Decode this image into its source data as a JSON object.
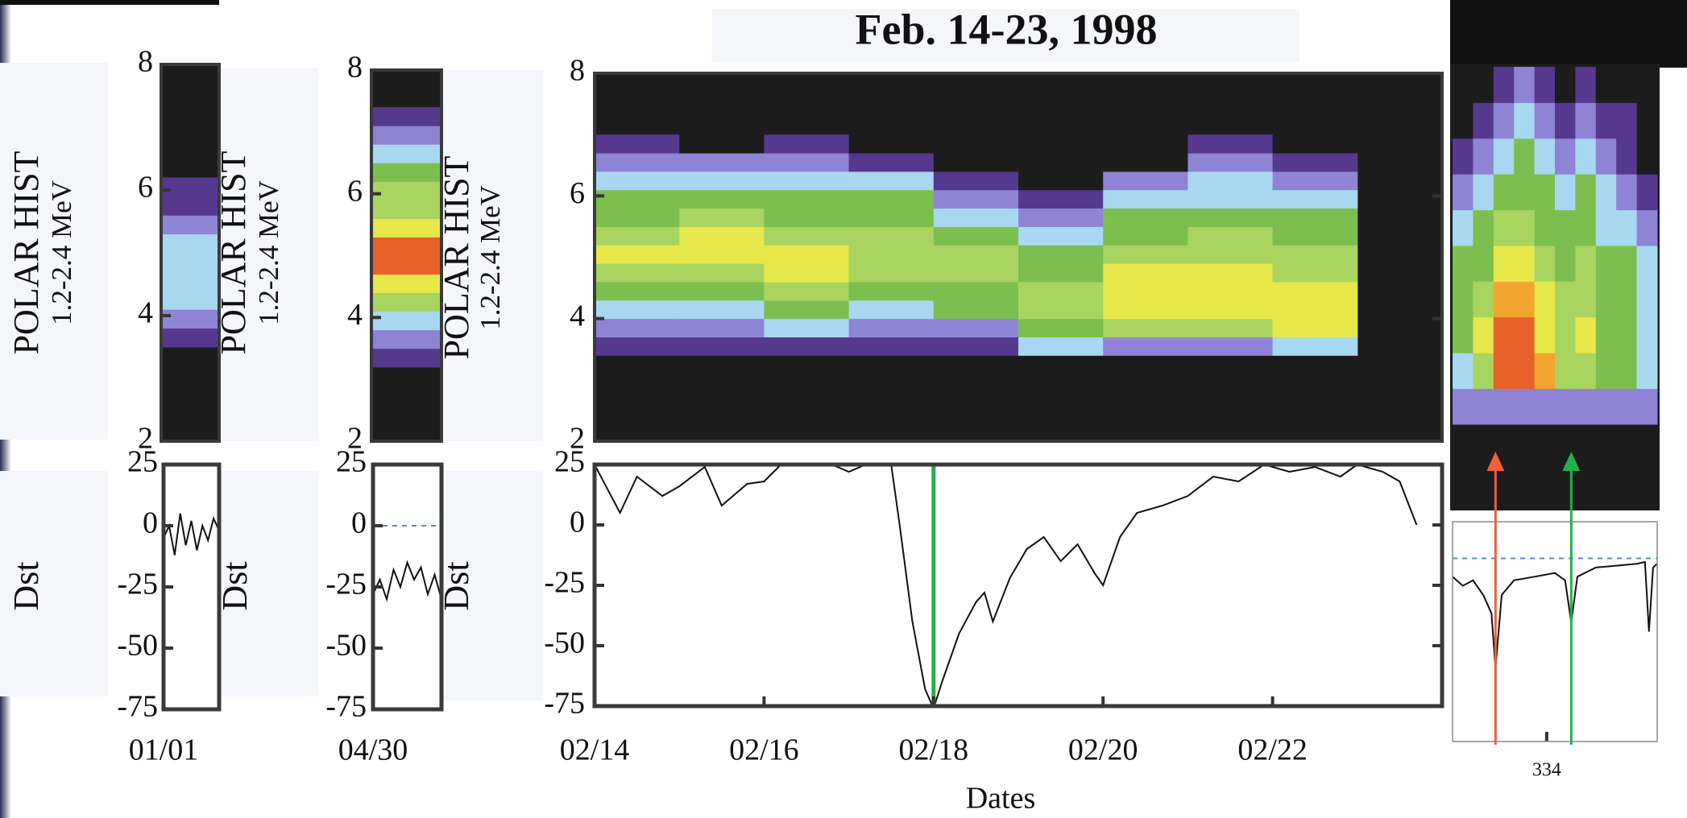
{
  "chart_data": [
    {
      "type": "heatmap",
      "title": "Feb. 14-23, 1998",
      "ylabel": "POLAR HIST",
      "ylabel_sub": "1.2-2.4 MeV",
      "xlim": [
        14,
        24
      ],
      "ylim": [
        2,
        8
      ],
      "yticks": [
        2,
        4,
        6,
        8
      ],
      "xbins": [
        14,
        15,
        16,
        17,
        18,
        19,
        20,
        21,
        22,
        23
      ],
      "ybins": [
        3.4,
        3.7,
        4.0,
        4.3,
        4.6,
        4.9,
        5.2,
        5.5,
        5.8,
        6.1,
        6.4,
        6.7,
        7.0
      ],
      "colorscale": [
        "#1c1c1c",
        "#56388f",
        "#8f83d6",
        "#a8d8ef",
        "#7cbf4e",
        "#a9d460",
        "#e6e84a",
        "#f2a52e",
        "#e8602a"
      ],
      "z": [
        [
          1,
          2,
          3,
          4,
          5,
          6,
          5,
          4,
          4,
          3,
          2,
          1
        ],
        [
          1,
          2,
          3,
          4,
          5,
          6,
          6,
          5,
          4,
          3,
          2,
          0
        ],
        [
          1,
          3,
          4,
          5,
          6,
          6,
          5,
          4,
          4,
          3,
          2,
          1
        ],
        [
          1,
          2,
          3,
          4,
          5,
          5,
          5,
          4,
          4,
          3,
          1,
          0
        ],
        [
          1,
          2,
          4,
          4,
          5,
          5,
          4,
          3,
          2,
          1,
          0,
          0
        ],
        [
          3,
          4,
          5,
          5,
          4,
          4,
          3,
          2,
          1,
          0,
          0,
          0
        ],
        [
          2,
          5,
          6,
          6,
          6,
          5,
          4,
          4,
          3,
          2,
          0,
          0
        ],
        [
          2,
          5,
          6,
          6,
          6,
          5,
          5,
          4,
          3,
          3,
          2,
          1
        ],
        [
          3,
          6,
          6,
          6,
          5,
          5,
          4,
          4,
          3,
          2,
          1,
          0
        ]
      ]
    },
    {
      "type": "line",
      "ylabel": "Dst",
      "xlabel": "Dates",
      "xlim": [
        14,
        24
      ],
      "ylim": [
        -75,
        25
      ],
      "yticks": [
        -75,
        -50,
        -25,
        0,
        25
      ],
      "xticks": [
        {
          "value": 14,
          "label": "02/14"
        },
        {
          "value": 16,
          "label": "02/16"
        },
        {
          "value": 18,
          "label": "02/18"
        },
        {
          "value": 20,
          "label": "02/20"
        },
        {
          "value": 22,
          "label": "02/22"
        }
      ],
      "color": "#111111",
      "markers": [
        {
          "x": 18,
          "color": "#22b04a"
        }
      ],
      "x": [
        14.0,
        14.3,
        14.5,
        14.8,
        15.0,
        15.3,
        15.5,
        15.8,
        16.0,
        16.2,
        16.5,
        16.8,
        17.0,
        17.2,
        17.5,
        17.6,
        17.75,
        17.9,
        18.0,
        18.1,
        18.3,
        18.5,
        18.6,
        18.7,
        18.9,
        19.1,
        19.3,
        19.5,
        19.7,
        19.9,
        20.0,
        20.2,
        20.4,
        20.7,
        21.0,
        21.3,
        21.6,
        21.9,
        22.2,
        22.5,
        22.8,
        23.0,
        23.3,
        23.5,
        23.7
      ],
      "values": [
        25,
        5,
        20,
        12,
        16,
        24,
        8,
        17,
        18,
        25,
        25,
        25,
        22,
        25,
        25,
        0,
        -40,
        -68,
        -76,
        -65,
        -45,
        -32,
        -28,
        -40,
        -22,
        -10,
        -5,
        -15,
        -8,
        -20,
        -25,
        -5,
        5,
        8,
        12,
        20,
        18,
        25,
        22,
        24,
        20,
        25,
        22,
        18,
        0
      ]
    },
    {
      "type": "heatmap",
      "ylabel": "POLAR HIST",
      "ylabel_sub": "1.2-2.4 MeV",
      "xlim": [
        0,
        1
      ],
      "ylim": [
        2,
        8
      ],
      "yticks": [
        2,
        4,
        6,
        8
      ],
      "xbins": [
        0,
        1
      ],
      "ybins": [
        3.5,
        3.8,
        4.1,
        4.4,
        4.7,
        5.0,
        5.3,
        5.6,
        5.9,
        6.2
      ],
      "colorscale": [
        "#1c1c1c",
        "#56388f",
        "#8f83d6",
        "#a8d8ef",
        "#7cbf4e",
        "#a9d460",
        "#e6e84a",
        "#f2a52e",
        "#e8602a"
      ],
      "z": [
        [
          1,
          2,
          3,
          3,
          3,
          3,
          2,
          1,
          1
        ]
      ]
    },
    {
      "type": "line",
      "ylabel": "Dst",
      "xlim": [
        0,
        1
      ],
      "ylim": [
        -75,
        25
      ],
      "yticks": [
        -75,
        -50,
        -25,
        0,
        25
      ],
      "xticks": [
        {
          "value": 0,
          "label": "01/01"
        }
      ],
      "color": "#111111",
      "x": [
        0,
        0.1,
        0.2,
        0.3,
        0.4,
        0.5,
        0.6,
        0.7,
        0.8,
        0.9,
        1
      ],
      "values": [
        -5,
        0,
        -12,
        5,
        -8,
        2,
        -10,
        0,
        -6,
        3,
        -2
      ]
    },
    {
      "type": "heatmap",
      "ylabel": "POLAR HIST",
      "ylabel_sub": "1.2-2.4 MeV",
      "xlim": [
        0,
        1
      ],
      "ylim": [
        2,
        8
      ],
      "yticks": [
        2,
        4,
        6,
        8
      ],
      "xbins": [
        0,
        1
      ],
      "ybins": [
        3.2,
        3.5,
        3.8,
        4.1,
        4.4,
        4.7,
        5.0,
        5.3,
        5.6,
        5.9,
        6.2,
        6.5,
        6.8,
        7.1,
        7.4
      ],
      "colorscale": [
        "#1c1c1c",
        "#56388f",
        "#8f83d6",
        "#a8d8ef",
        "#7cbf4e",
        "#a9d460",
        "#e6e84a",
        "#f2a52e",
        "#e8602a"
      ],
      "z": [
        [
          1,
          2,
          3,
          5,
          6,
          8,
          8,
          6,
          5,
          5,
          4,
          3,
          2,
          1
        ]
      ]
    },
    {
      "type": "line",
      "ylabel": "Dst",
      "xlim": [
        0,
        1
      ],
      "ylim": [
        -75,
        25
      ],
      "yticks": [
        -75,
        -50,
        -25,
        0,
        25
      ],
      "xticks": [
        {
          "value": 0,
          "label": "04/30"
        }
      ],
      "color": "#111111",
      "hline": 0,
      "x": [
        0,
        0.1,
        0.2,
        0.3,
        0.4,
        0.5,
        0.6,
        0.7,
        0.8,
        0.9,
        1
      ],
      "values": [
        -28,
        -22,
        -30,
        -18,
        -25,
        -15,
        -22,
        -17,
        -28,
        -20,
        -30
      ]
    },
    {
      "type": "heatmap",
      "xlim": [
        0,
        10
      ],
      "ylim": [
        0,
        10
      ],
      "xbins": [
        0,
        1,
        2,
        3,
        4,
        5,
        6,
        7,
        8,
        9,
        10
      ],
      "ybins": [
        0,
        1,
        2,
        3,
        4,
        5,
        6,
        7,
        8,
        9,
        10
      ],
      "colorscale": [
        "#1c1c1c",
        "#56388f",
        "#8f83d6",
        "#a8d8ef",
        "#7cbf4e",
        "#a9d460",
        "#e6e84a",
        "#f2a52e",
        "#e8602a"
      ],
      "z": [
        [
          2,
          3,
          4,
          4,
          4,
          3,
          2,
          1,
          0,
          0
        ],
        [
          2,
          5,
          6,
          5,
          4,
          4,
          3,
          2,
          1,
          0
        ],
        [
          2,
          8,
          8,
          7,
          6,
          5,
          4,
          3,
          2,
          1
        ],
        [
          2,
          8,
          8,
          7,
          6,
          5,
          4,
          4,
          3,
          2
        ],
        [
          2,
          7,
          6,
          6,
          5,
          4,
          4,
          3,
          2,
          1
        ],
        [
          2,
          5,
          5,
          5,
          4,
          4,
          3,
          2,
          1,
          0
        ],
        [
          2,
          5,
          6,
          5,
          5,
          4,
          4,
          3,
          2,
          1
        ],
        [
          2,
          4,
          4,
          4,
          4,
          3,
          3,
          2,
          1,
          0
        ],
        [
          2,
          4,
          4,
          4,
          4,
          3,
          2,
          1,
          1,
          0
        ],
        [
          2,
          3,
          3,
          3,
          3,
          2,
          1,
          0,
          0,
          0
        ]
      ]
    },
    {
      "type": "line",
      "xlim": [
        0,
        10
      ],
      "ylim": [
        -100,
        20
      ],
      "color": "#111111",
      "hline": 0,
      "xticks": [
        {
          "value": 4.6,
          "label": "334"
        }
      ],
      "markers": [
        {
          "x": 2.1,
          "color": "#f0603a"
        },
        {
          "x": 5.8,
          "color": "#22b04a"
        }
      ],
      "x": [
        0,
        0.5,
        1,
        1.5,
        1.9,
        2.1,
        2.4,
        3,
        4,
        5,
        5.5,
        5.8,
        6.1,
        7,
        8,
        9,
        9.4,
        9.6,
        9.8,
        10
      ],
      "values": [
        -10,
        -15,
        -12,
        -20,
        -30,
        -60,
        -20,
        -12,
        -10,
        -8,
        -12,
        -35,
        -10,
        -5,
        -4,
        -3,
        -2,
        -40,
        -5,
        -3
      ]
    }
  ]
}
